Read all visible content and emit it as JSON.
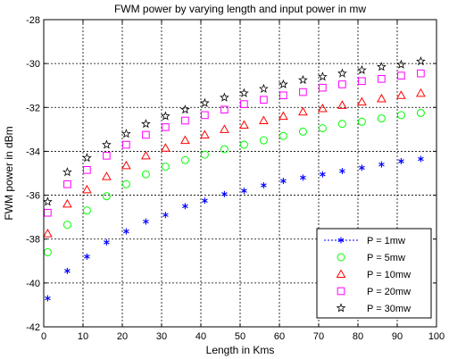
{
  "chart_data": {
    "type": "scatter",
    "title": "FWM power by varying length and input power in mw",
    "xlabel": "Length in Kms",
    "ylabel": "FWM power in dBm",
    "xlim": [
      0,
      100
    ],
    "ylim": [
      -42,
      -28
    ],
    "xticks": [
      0,
      10,
      20,
      30,
      40,
      50,
      60,
      70,
      80,
      90,
      100
    ],
    "yticks": [
      -42,
      -40,
      -38,
      -36,
      -34,
      -32,
      -30,
      -28
    ],
    "grid": true,
    "legend_position": "bottom-right",
    "x": [
      1,
      6,
      11,
      16,
      21,
      26,
      31,
      36,
      41,
      46,
      51,
      56,
      61,
      66,
      71,
      76,
      81,
      86,
      91,
      96
    ],
    "series": [
      {
        "name": "P = 1mw",
        "marker": "asterisk",
        "color": "#0000ff",
        "values": [
          -40.7,
          -39.45,
          -38.8,
          -38.15,
          -37.65,
          -37.2,
          -36.9,
          -36.5,
          -36.25,
          -35.95,
          -35.8,
          -35.55,
          -35.35,
          -35.2,
          -35.05,
          -34.9,
          -34.75,
          -34.6,
          -34.45,
          -34.35
        ]
      },
      {
        "name": "P = 5mw",
        "marker": "circle",
        "color": "#00ff00",
        "values": [
          -38.6,
          -37.35,
          -36.7,
          -36.05,
          -35.5,
          -35.05,
          -34.7,
          -34.4,
          -34.15,
          -33.9,
          -33.7,
          -33.5,
          -33.3,
          -33.1,
          -32.95,
          -32.75,
          -32.65,
          -32.5,
          -32.35,
          -32.25
        ]
      },
      {
        "name": "P = 10mw",
        "marker": "triangle",
        "color": "#ff0000",
        "values": [
          -37.75,
          -36.4,
          -35.75,
          -35.15,
          -34.65,
          -34.2,
          -33.85,
          -33.5,
          -33.25,
          -33.0,
          -32.8,
          -32.6,
          -32.4,
          -32.2,
          -32.05,
          -31.9,
          -31.75,
          -31.6,
          -31.45,
          -31.35
        ]
      },
      {
        "name": "P = 20mw",
        "marker": "square",
        "color": "#ff00ff",
        "values": [
          -36.8,
          -35.5,
          -34.85,
          -34.2,
          -33.7,
          -33.25,
          -32.9,
          -32.6,
          -32.35,
          -32.1,
          -31.85,
          -31.65,
          -31.45,
          -31.3,
          -31.1,
          -30.95,
          -30.8,
          -30.7,
          -30.55,
          -30.45
        ]
      },
      {
        "name": "P = 30mw",
        "marker": "star",
        "color": "#000000",
        "values": [
          -36.3,
          -34.95,
          -34.3,
          -33.7,
          -33.2,
          -32.75,
          -32.4,
          -32.1,
          -31.8,
          -31.55,
          -31.35,
          -31.15,
          -30.95,
          -30.75,
          -30.6,
          -30.45,
          -30.3,
          -30.15,
          -30.05,
          -29.9
        ]
      }
    ]
  }
}
